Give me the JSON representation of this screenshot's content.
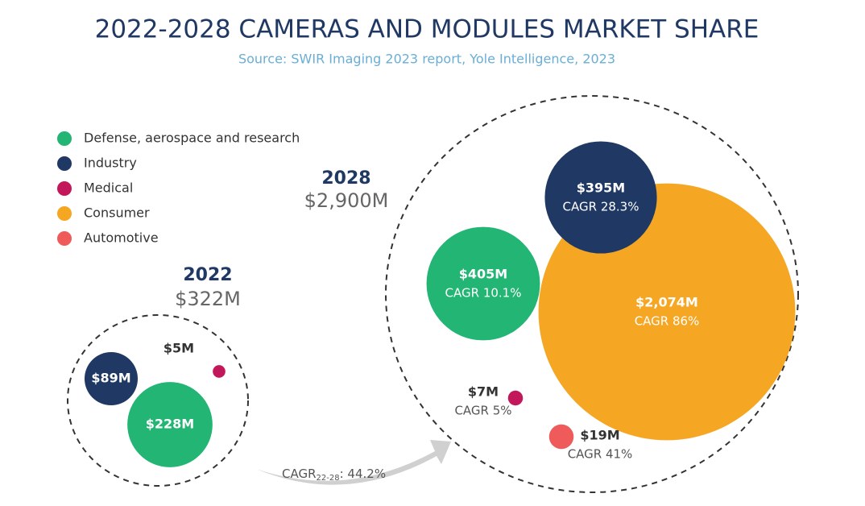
{
  "chart_data": {
    "type": "bubble",
    "title": "2022-2028 CAMERAS AND MODULES MARKET SHARE",
    "subtitle": "Source: SWIR Imaging 2023 report, Yole Intelligence, 2023",
    "categories": [
      "2022",
      "2028"
    ],
    "totals": [
      322,
      2900
    ],
    "total_labels": [
      "$322M",
      "$2,900M"
    ],
    "series": [
      {
        "name": "Defense, aerospace and research",
        "color": "#22b573",
        "values": [
          228,
          405
        ],
        "value_labels": [
          "$228M",
          "$405M"
        ],
        "cagr_labels": [
          null,
          "CAGR 10.1%"
        ]
      },
      {
        "name": "Industry",
        "color": "#1f3864",
        "values": [
          89,
          395
        ],
        "value_labels": [
          "$89M",
          "$395M"
        ],
        "cagr_labels": [
          null,
          "CAGR 28.3%"
        ]
      },
      {
        "name": "Medical",
        "color": "#c2185b",
        "values": [
          5,
          7
        ],
        "value_labels": [
          "$5M",
          "$7M"
        ],
        "cagr_labels": [
          null,
          "CAGR 5%"
        ]
      },
      {
        "name": "Consumer",
        "color": "#f5a623",
        "values": [
          null,
          2074
        ],
        "value_labels": [
          null,
          "$2,074M"
        ],
        "cagr_labels": [
          null,
          "CAGR 86%"
        ]
      },
      {
        "name": "Automotive",
        "color": "#ef5b5b",
        "values": [
          null,
          19
        ],
        "value_labels": [
          null,
          "$19M"
        ],
        "cagr_labels": [
          null,
          "CAGR 41%"
        ]
      }
    ],
    "growth": {
      "label": "CAGR",
      "period": "22-28",
      "rate": ": 44.2%"
    }
  }
}
